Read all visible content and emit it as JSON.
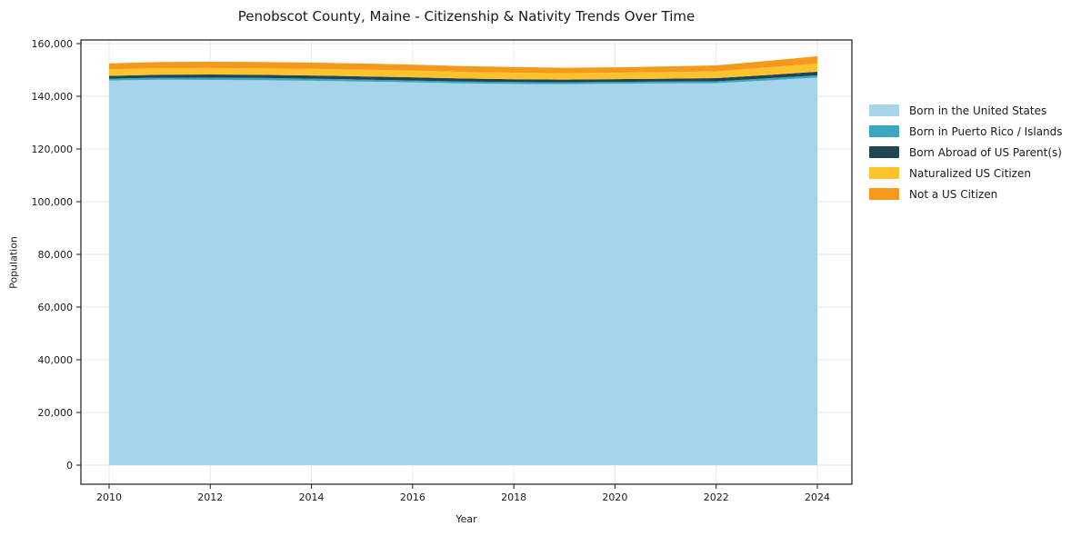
{
  "chart_data": {
    "type": "area",
    "stacked": true,
    "title": "Penobscot County, Maine - Citizenship & Nativity Trends Over Time",
    "xlabel": "Year",
    "ylabel": "Population",
    "x": [
      2010,
      2011,
      2012,
      2013,
      2014,
      2015,
      2016,
      2017,
      2018,
      2019,
      2020,
      2021,
      2022,
      2023,
      2024
    ],
    "series": [
      {
        "name": "Born in the United States",
        "color": "#a6d4ea",
        "values": [
          146000,
          146300,
          146200,
          146100,
          145900,
          145600,
          145300,
          144900,
          144700,
          144600,
          144800,
          144900,
          145000,
          146000,
          147100
        ]
      },
      {
        "name": "Born in Puerto Rico / Islands",
        "color": "#3aa6c0",
        "values": [
          700,
          780,
          860,
          850,
          800,
          760,
          700,
          700,
          700,
          690,
          690,
          690,
          690,
          780,
          860
        ]
      },
      {
        "name": "Born Abroad of US Parent(s)",
        "color": "#1f4454",
        "values": [
          1050,
          1120,
          1200,
          1200,
          1200,
          1200,
          1200,
          1150,
          1100,
          1050,
          1030,
          1100,
          1200,
          1290,
          1380
        ]
      },
      {
        "name": "Naturalized US Citizen",
        "color": "#fcc32d",
        "values": [
          2500,
          2480,
          2450,
          2450,
          2500,
          2550,
          2600,
          2500,
          2450,
          2400,
          2420,
          2500,
          2590,
          2850,
          3100
        ]
      },
      {
        "name": "Not a US Citizen",
        "color": "#f5991d",
        "values": [
          2250,
          2330,
          2400,
          2400,
          2400,
          2350,
          2250,
          2200,
          2150,
          2100,
          2070,
          2150,
          2240,
          2500,
          2760
        ]
      }
    ],
    "xticks": [
      2010,
      2012,
      2014,
      2016,
      2018,
      2020,
      2022,
      2024
    ],
    "yticks": [
      0,
      20000,
      40000,
      60000,
      80000,
      100000,
      120000,
      140000,
      160000
    ],
    "xlim": [
      2010,
      2024
    ],
    "ylim": [
      0,
      160000
    ],
    "grid": true,
    "legend_position": "right-outside",
    "axis_color": "#1a1a1a",
    "grid_color": "#eaeaea"
  }
}
